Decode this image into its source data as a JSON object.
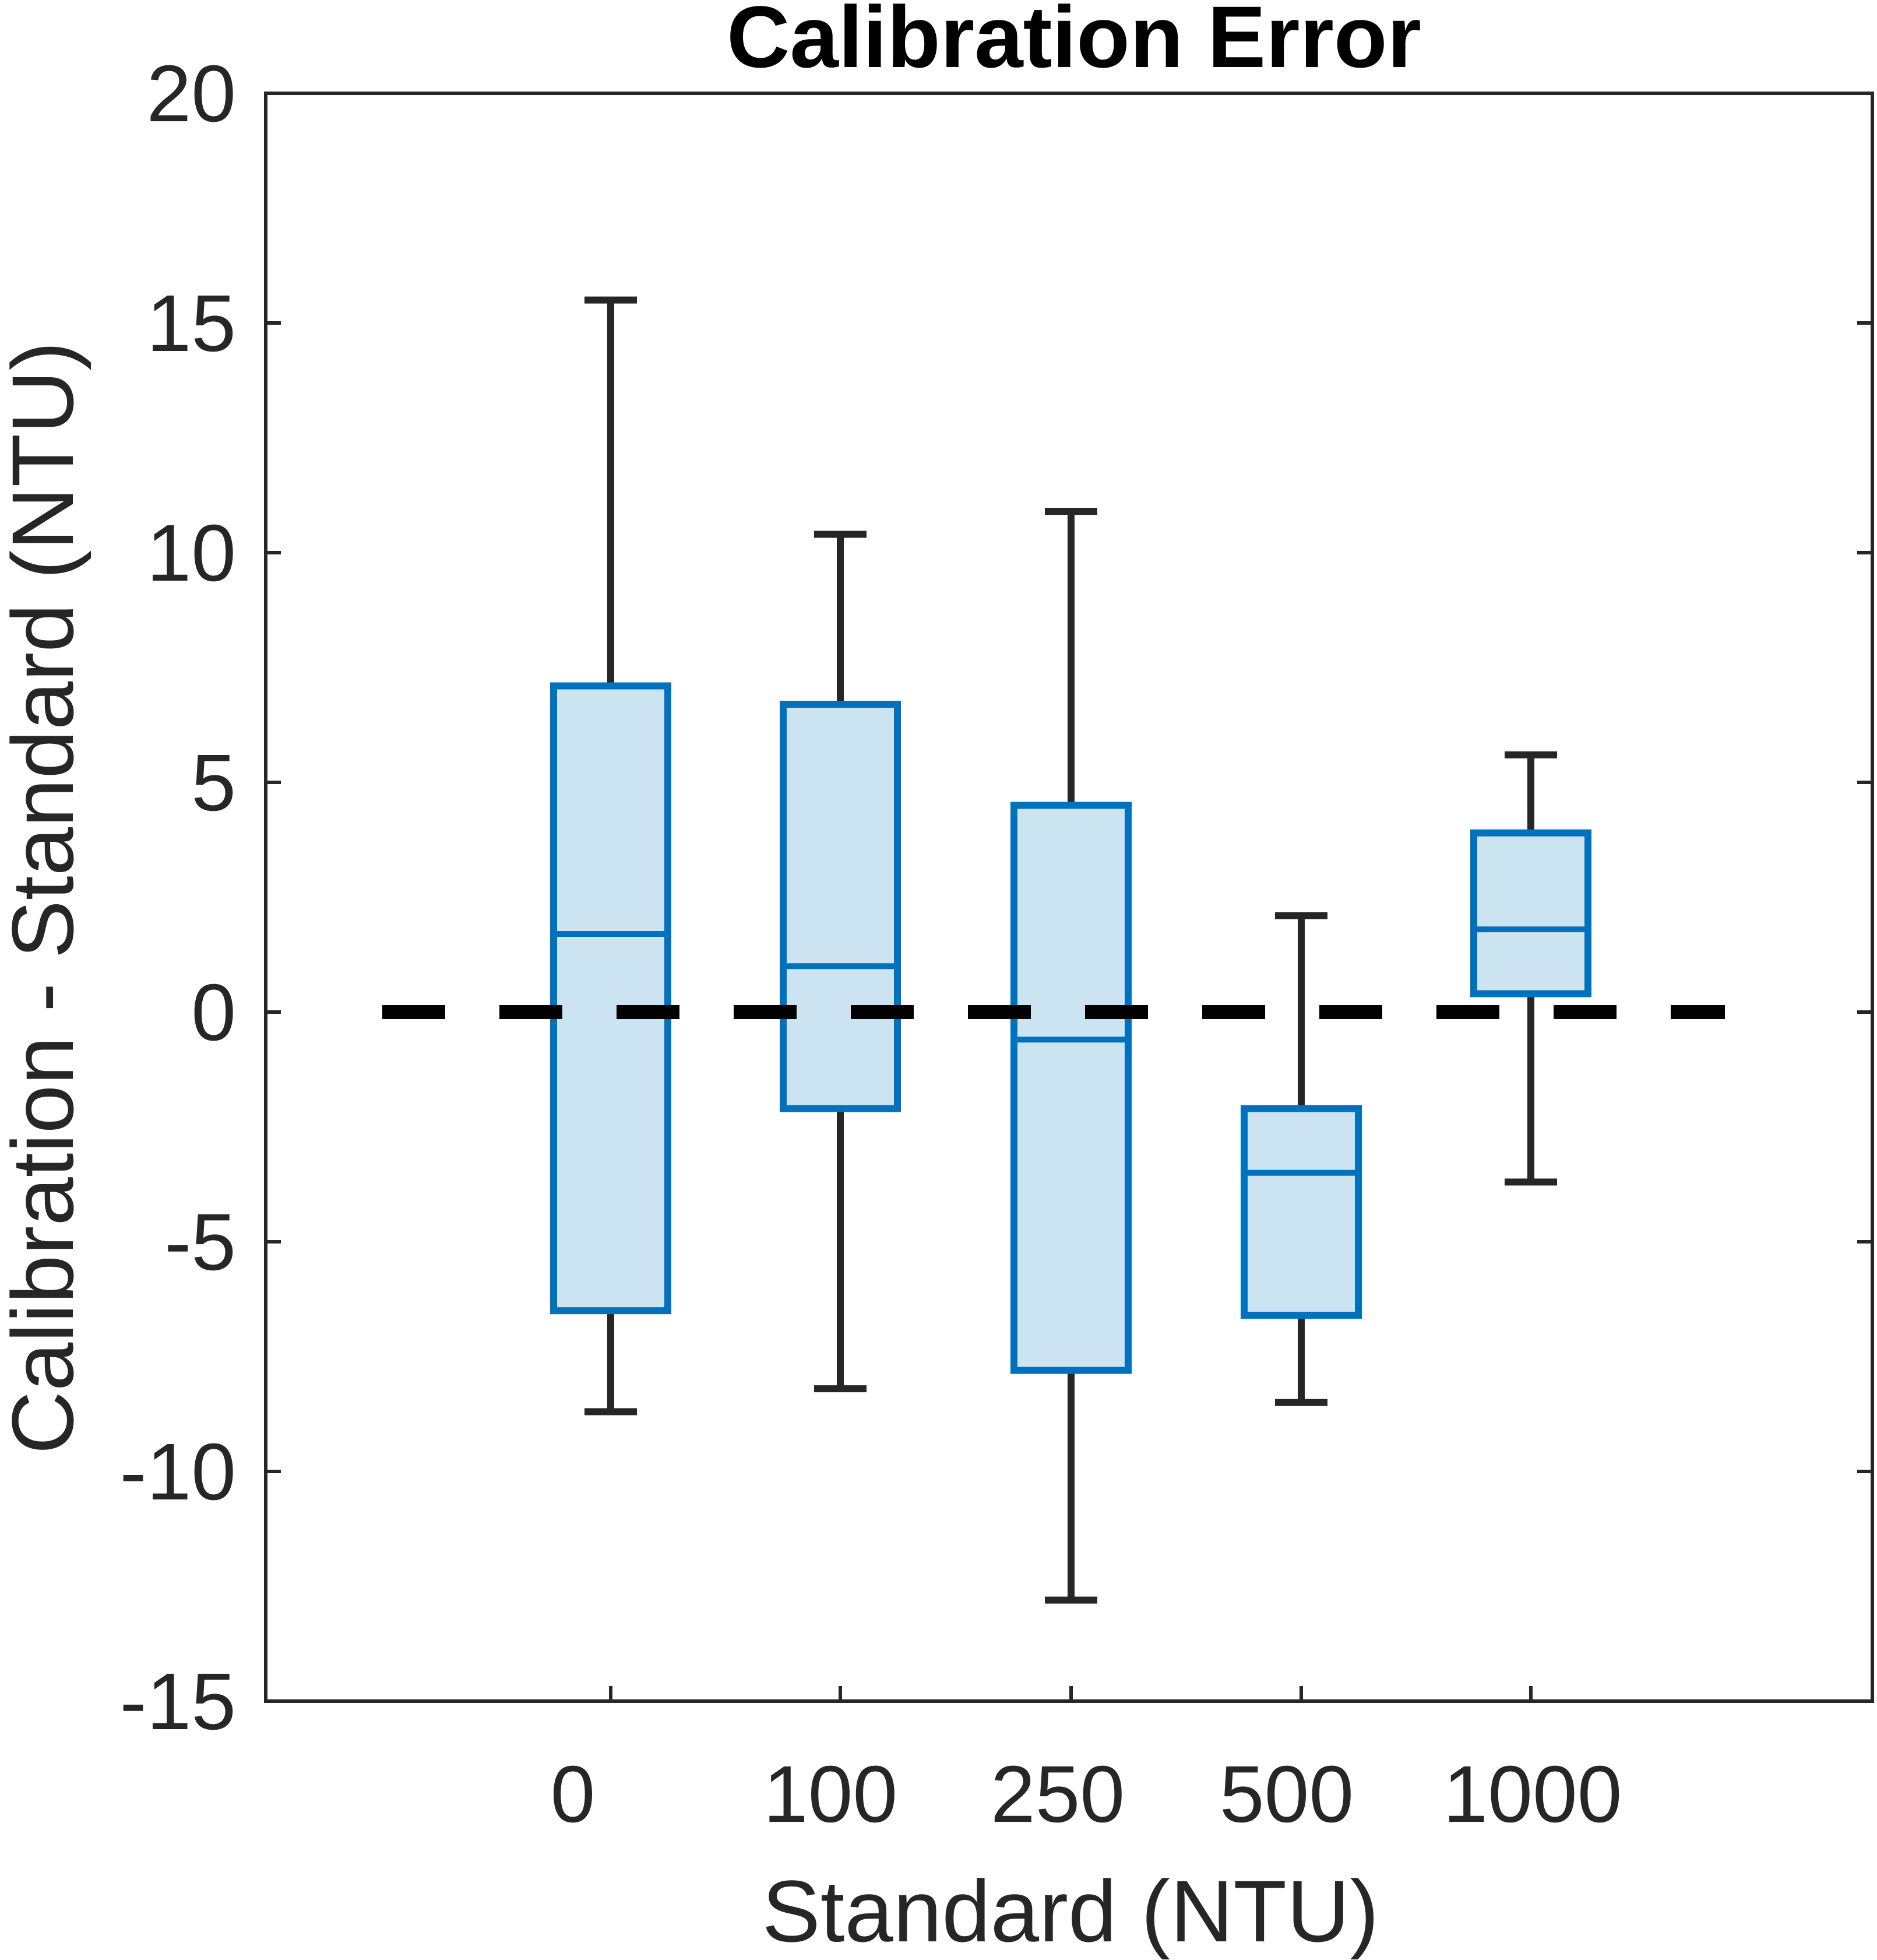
{
  "chart_data": {
    "type": "box",
    "title": "Calibration Error",
    "xlabel": "Standard (NTU)",
    "ylabel": "Calibration - Standard (NTU)",
    "categories": [
      "0",
      "100",
      "250",
      "500",
      "1000"
    ],
    "ylim": [
      -15,
      20
    ],
    "yticks": [
      -15,
      -10,
      -5,
      0,
      5,
      10,
      15,
      20
    ],
    "reference_line": {
      "y": 0,
      "style": "dashed",
      "color": "#000000"
    },
    "boxes": [
      {
        "category": "0",
        "whisker_low": -8.7,
        "q1": -6.5,
        "median": 1.7,
        "q3": 7.1,
        "whisker_high": 15.5
      },
      {
        "category": "100",
        "whisker_low": -8.2,
        "q1": -2.1,
        "median": 1.0,
        "q3": 6.7,
        "whisker_high": 10.4
      },
      {
        "category": "250",
        "whisker_low": -12.8,
        "q1": -7.8,
        "median": -0.6,
        "q3": 4.5,
        "whisker_high": 10.9
      },
      {
        "category": "500",
        "whisker_low": -8.5,
        "q1": -6.6,
        "median": -3.5,
        "q3": -2.1,
        "whisker_high": 2.1
      },
      {
        "category": "1000",
        "whisker_low": -3.7,
        "q1": 0.4,
        "median": 1.8,
        "q3": 3.9,
        "whisker_high": 5.6
      }
    ],
    "colors": {
      "box_edge": "#0072BD",
      "box_fill": "#CCE3F1",
      "whisker": "#262626",
      "axes": "#262626"
    },
    "grid": false,
    "legend": "none"
  }
}
